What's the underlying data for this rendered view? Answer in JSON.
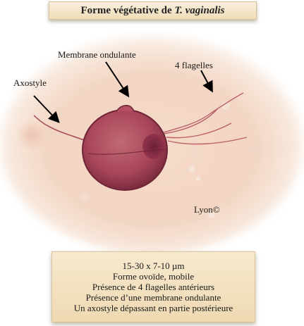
{
  "title": {
    "prefix": "Forme végétative de",
    "species": "T. vaginalis"
  },
  "labels": {
    "membrane": "Membrane ondulante",
    "flagelles": "4 flagelles",
    "axostyle": "Axostyle",
    "credit": "Lyon©"
  },
  "description": {
    "lines": [
      "15-30 x 7-10 µm",
      "Forme ovoïde, mobile",
      "Présence de 4 flagelles antérieurs",
      "Présence d’une membrane ondulante",
      "Un axostyle dépassant en partie postérieure"
    ]
  },
  "colors": {
    "background_field": "#f3d8c6",
    "cell_body": "#b0505f",
    "nucleus": "#7a2740",
    "title_bg": "#f3e4c6",
    "info_bg": "#f2dfbd"
  }
}
